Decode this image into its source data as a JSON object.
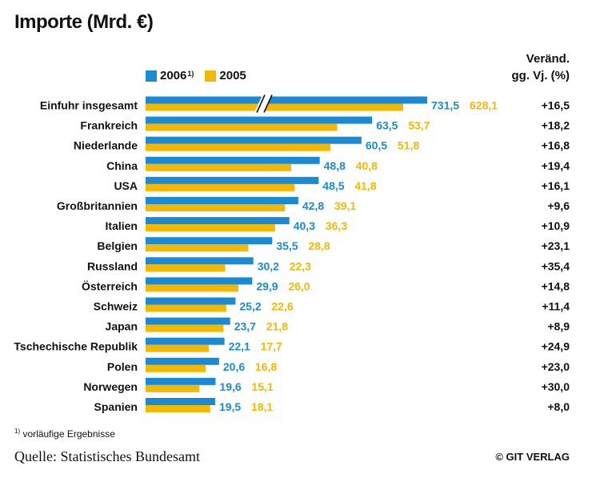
{
  "title": "Importe (Mrd. €)",
  "change_header": {
    "line1": "Veränd.",
    "line2": "gg. Vj. (%)"
  },
  "legend": [
    {
      "label": "2006",
      "note": "1)",
      "color": "#1a8ad4"
    },
    {
      "label": "2005",
      "note": "",
      "color": "#f5b800"
    }
  ],
  "footnote": {
    "mark": "1)",
    "text": "vorläufige Ergebnisse"
  },
  "source": "Quelle: Statistisches Bundesamt",
  "publisher": "© GIT VERLAG",
  "chart_data": {
    "type": "bar",
    "orientation": "horizontal",
    "axis_break": "Einfuhr insgesamt",
    "categories": [
      "Einfuhr insgesamt",
      "Frankreich",
      "Niederlande",
      "China",
      "USA",
      "Großbritannien",
      "Italien",
      "Belgien",
      "Russland",
      "Österreich",
      "Schweiz",
      "Japan",
      "Tschechische Republik",
      "Polen",
      "Norwegen",
      "Spanien"
    ],
    "series": [
      {
        "name": "2006",
        "color": "#1a8ad4",
        "values": [
          731.5,
          63.5,
          60.5,
          48.8,
          48.5,
          42.8,
          40.3,
          35.5,
          30.2,
          29.9,
          25.2,
          23.7,
          22.1,
          20.6,
          19.6,
          19.5
        ],
        "labels": [
          "731,5",
          "63,5",
          "60,5",
          "48,8",
          "48,5",
          "42,8",
          "40,3",
          "35,5",
          "30,2",
          "29,9",
          "25,2",
          "23,7",
          "22,1",
          "20,6",
          "19,6",
          "19,5"
        ]
      },
      {
        "name": "2005",
        "color": "#f5b800",
        "values": [
          628.1,
          53.7,
          51.8,
          40.8,
          41.8,
          39.1,
          36.3,
          28.8,
          22.3,
          26.0,
          22.6,
          21.8,
          17.7,
          16.8,
          15.1,
          18.1
        ],
        "labels": [
          "628,1",
          "53,7",
          "51,8",
          "40,8",
          "41,8",
          "39,1",
          "36,3",
          "28,8",
          "22,3",
          "26,0",
          "22,6",
          "21,8",
          "17,7",
          "16,8",
          "15,1",
          "18,1"
        ]
      }
    ],
    "change": [
      "+16,5",
      "+18,2",
      "+16,8",
      "+19,4",
      "+16,1",
      "+9,6",
      "+10,9",
      "+23,1",
      "+35,4",
      "+14,8",
      "+11,4",
      "+8,9",
      "+24,9",
      "+23,0",
      "+30,0",
      "+8,0"
    ]
  }
}
